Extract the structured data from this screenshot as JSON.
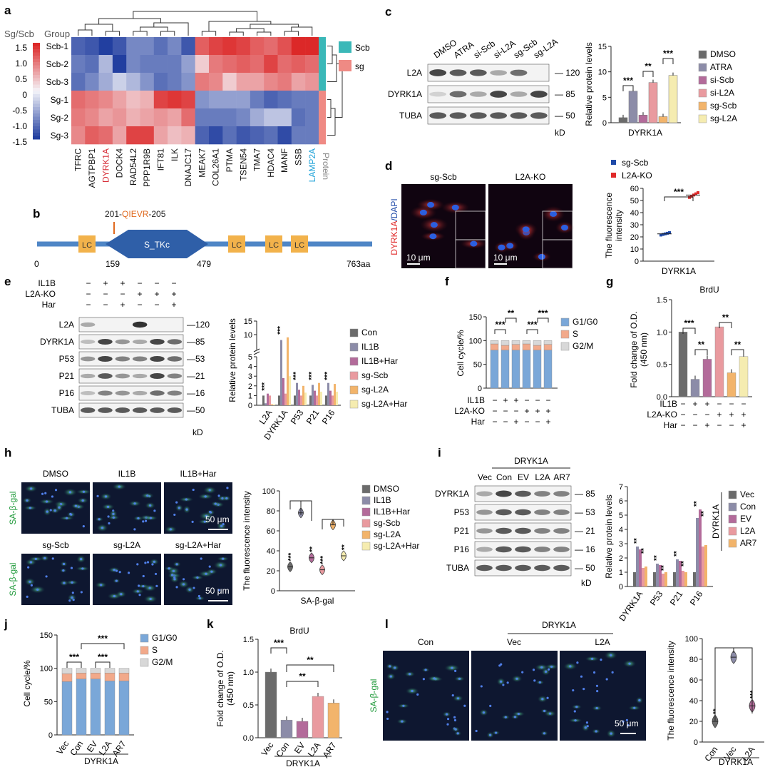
{
  "panel_letters": [
    "a",
    "b",
    "c",
    "d",
    "e",
    "f",
    "g",
    "h",
    "i",
    "j",
    "k",
    "l"
  ],
  "heatmap": {
    "scale_title": "Sg/Scb",
    "group_title": "Group",
    "scale_ticks": [
      "1.5",
      "1.0",
      "0.5",
      "0",
      "-0.5",
      "-1.0",
      "-1.5"
    ],
    "rows": [
      "Scb-1",
      "Scb-2",
      "Scb-3",
      "Sg-1",
      "Sg-2",
      "Sg-3"
    ],
    "row_groups": [
      "Scb",
      "Scb",
      "Scb",
      "sg",
      "sg",
      "sg"
    ],
    "cols": [
      "TFRC",
      "AGTPBP1",
      "DYRK1A",
      "DOCK4",
      "RAD54L2",
      "PPP1R9B",
      "IFT81",
      "ILK",
      "DNAJC17",
      "MEAK7",
      "COL26A1",
      "PTMA",
      "TSEN54",
      "TMA7",
      "HDAC4",
      "MANF",
      "SSB",
      "LAMP2A"
    ],
    "col_highlight": {
      "DYRK1A": "#d7303a",
      "LAMP2A": "#1ea2d8"
    },
    "protein_label": "Protein",
    "legend": [
      {
        "label": "Scb",
        "color": "#3bb8b8"
      },
      {
        "label": "sg",
        "color": "#ef8a84"
      }
    ],
    "values": [
      [
        -1.2,
        -1.3,
        -1.5,
        -1.3,
        -0.9,
        -0.9,
        -1.1,
        -0.9,
        -1.3,
        1.1,
        1.3,
        1.4,
        1.3,
        1.1,
        1.0,
        1.2,
        1.5,
        1.5
      ],
      [
        -1.0,
        -1.1,
        -0.5,
        -1.5,
        -0.9,
        -1.0,
        -1.0,
        -1.0,
        -0.7,
        0.3,
        0.9,
        1.0,
        1.1,
        1.0,
        1.3,
        1.0,
        1.1,
        1.0
      ],
      [
        -1.1,
        -0.9,
        -0.6,
        -0.3,
        -0.5,
        -0.8,
        -1.1,
        -1.0,
        -0.8,
        0.9,
        0.8,
        0.3,
        0.6,
        0.6,
        0.8,
        0.9,
        0.6,
        0.7
      ],
      [
        1.0,
        0.9,
        0.8,
        0.6,
        0.4,
        0.5,
        1.3,
        1.4,
        1.3,
        -0.8,
        -0.7,
        -0.7,
        -0.7,
        -1.0,
        -1.2,
        -1.1,
        -1.0,
        -1.0
      ],
      [
        0.9,
        0.8,
        0.6,
        0.7,
        0.5,
        0.6,
        0.7,
        0.6,
        1.0,
        -1.0,
        -1.0,
        -1.0,
        -0.9,
        -0.6,
        -0.4,
        -0.4,
        -1.1,
        -1.0
      ],
      [
        0.8,
        1.1,
        1.0,
        0.6,
        1.3,
        1.3,
        0.6,
        0.4,
        0.5,
        -1.2,
        -1.4,
        -1.1,
        -1.3,
        -1.2,
        -1.1,
        -1.4,
        -1.0,
        -1.0
      ]
    ]
  },
  "domain": {
    "site_label": "201-QIEVR-205",
    "site_prefix": "201-",
    "site_motif": "QIEVR",
    "site_suffix": "-205",
    "kinase": "S_TKc",
    "lc": "LC",
    "positions": [
      "0",
      "159",
      "479",
      "763aa"
    ]
  },
  "blot_c": {
    "lanes": [
      "DMSO",
      "ATRA",
      "si-Scb",
      "si-L2A",
      "sg-Scb",
      "sg-L2A"
    ],
    "bands": [
      "L2A",
      "DYRK1A",
      "TUBA"
    ],
    "sizes": [
      "120",
      "85",
      "50"
    ],
    "unit": "kD"
  },
  "chart_c": {
    "type": "bar",
    "ylabel": "Relative protein levels",
    "xlabel": "DYRK1A",
    "ylim": [
      0,
      15
    ],
    "yticks": [
      "0",
      "5",
      "10",
      "15"
    ],
    "series": [
      {
        "name": "DMSO",
        "value": 1.0,
        "color": "#6b6b6b"
      },
      {
        "name": "ATRA",
        "value": 6.2,
        "color": "#8c8ca8"
      },
      {
        "name": "si-Scb",
        "value": 1.5,
        "color": "#b36b9a"
      },
      {
        "name": "si-L2A",
        "value": 7.9,
        "color": "#e99a9f"
      },
      {
        "name": "sg-Scb",
        "value": 1.2,
        "color": "#f2b46b"
      },
      {
        "name": "sg-L2A",
        "value": 9.3,
        "color": "#f5ecb0"
      }
    ],
    "sig": [
      "***",
      "**",
      "***"
    ]
  },
  "image_d": {
    "left": "sg-Scb",
    "right": "L2A-KO",
    "stain": "DYRK1A",
    "stain2": "/DAPI",
    "scalebar": "10 μm"
  },
  "chart_d": {
    "type": "scatter",
    "ylabel": "The fluorescence\nintensity",
    "xlabel": "DYRK1A",
    "ylim": [
      0,
      60
    ],
    "yticks": [
      "0",
      "10",
      "20",
      "30",
      "40",
      "50",
      "60"
    ],
    "series": [
      {
        "name": "sg-Scb",
        "color": "#1f4aa8",
        "mean": 22.5,
        "points": [
          21.5,
          22,
          22.5,
          23,
          23.5
        ]
      },
      {
        "name": "L2A-KO",
        "color": "#e02a2a",
        "mean": 54.5,
        "points": [
          52.5,
          53.5,
          54.5,
          55.5,
          56.5
        ]
      }
    ],
    "sig": "***"
  },
  "blot_e": {
    "rows": [
      {
        "label": "IL1B",
        "signs": [
          "−",
          "+",
          "+",
          "−",
          "−",
          "−"
        ]
      },
      {
        "label": "L2A-KO",
        "signs": [
          "−",
          "−",
          "−",
          "+",
          "+",
          "+"
        ]
      },
      {
        "label": "Har",
        "signs": [
          "−",
          "−",
          "+",
          "−",
          "−",
          "+"
        ]
      }
    ],
    "bands": [
      "L2A",
      "DYRK1A",
      "P53",
      "P21",
      "P16",
      "TUBA"
    ],
    "sizes": [
      "120",
      "85",
      "53",
      "21",
      "16",
      "50"
    ],
    "unit": "kD"
  },
  "chart_e": {
    "type": "bar",
    "ylabel": "Relative protein levels",
    "categories": [
      "L2A",
      "DYRK1A",
      "P53",
      "P21",
      "P16"
    ],
    "yticks": [
      "0",
      "1",
      "2",
      "3",
      "4",
      "5",
      "10",
      "15"
    ],
    "series": [
      {
        "name": "Con",
        "color": "#6b6b6b",
        "values": [
          1.0,
          1.0,
          1.0,
          1.0,
          1.0
        ]
      },
      {
        "name": "IL1B",
        "color": "#8c8ca8",
        "values": [
          0.2,
          8.0,
          2.3,
          2.1,
          2.3
        ]
      },
      {
        "name": "IL1B+Har",
        "color": "#b36b9a",
        "values": [
          1.2,
          2.8,
          1.6,
          1.5,
          1.5
        ]
      },
      {
        "name": "sg-Scb",
        "color": "#e99a9f",
        "values": [
          1.0,
          1.2,
          1.0,
          1.0,
          1.0
        ]
      },
      {
        "name": "sg-L2A",
        "color": "#f2b46b",
        "values": [
          0.1,
          9.0,
          2.0,
          2.3,
          2.2
        ]
      },
      {
        "name": "sg-L2A+Har",
        "color": "#f5ecb0",
        "values": [
          0.1,
          3.0,
          1.3,
          1.4,
          1.4
        ]
      }
    ]
  },
  "chart_f": {
    "type": "bar",
    "ylabel": "Cell cycle/%",
    "ylim": [
      0,
      150
    ],
    "yticks": [
      "0",
      "50",
      "100",
      "150"
    ],
    "series": [
      {
        "name": "G1/G0",
        "color": "#7aa7d8",
        "values": [
          80,
          80,
          80,
          80,
          80,
          80
        ]
      },
      {
        "name": "S",
        "color": "#f2a98a",
        "values": [
          13,
          10,
          12,
          13,
          10,
          12
        ]
      },
      {
        "name": "G2/M",
        "color": "#d8d8d8",
        "values": [
          7,
          10,
          8,
          7,
          10,
          8
        ]
      }
    ],
    "rows": [
      {
        "label": "IL1B",
        "signs": [
          "−",
          "+",
          "+",
          "−",
          "−",
          "−"
        ]
      },
      {
        "label": "L2A-KO",
        "signs": [
          "−",
          "−",
          "−",
          "+",
          "+",
          "+"
        ]
      },
      {
        "label": "Har",
        "signs": [
          "−",
          "−",
          "+",
          "−",
          "−",
          "+"
        ]
      }
    ],
    "sig": [
      "***",
      "**",
      "***",
      "***"
    ]
  },
  "chart_g": {
    "type": "bar",
    "title": "BrdU",
    "ylabel": "Fold change of O.D.\n(450 nm)",
    "ylim": [
      0,
      1.5
    ],
    "yticks": [
      "0.0",
      "0.5",
      "1.0",
      "1.5"
    ],
    "values": [
      1.0,
      0.27,
      0.58,
      1.08,
      0.37,
      0.62
    ],
    "colors": [
      "#6b6b6b",
      "#8c8ca8",
      "#b36b9a",
      "#e99a9f",
      "#f2b46b",
      "#f5ecb0"
    ],
    "rows": [
      {
        "label": "IL1B",
        "signs": [
          "−",
          "+",
          "+",
          "−",
          "−",
          "−"
        ]
      },
      {
        "label": "L2A-KO",
        "signs": [
          "−",
          "−",
          "−",
          "+",
          "+",
          "+"
        ]
      },
      {
        "label": "Har",
        "signs": [
          "−",
          "−",
          "+",
          "−",
          "−",
          "+"
        ]
      }
    ],
    "sig": [
      "***",
      "**",
      "**",
      "**"
    ]
  },
  "image_h": {
    "stain": "SA-β-gal",
    "labels": [
      "DMSO",
      "IL1B",
      "IL1B+Har",
      "sg-Scb",
      "sg-L2A",
      "sg-L2A+Har"
    ],
    "scalebar": "50 μm"
  },
  "chart_h": {
    "type": "scatter",
    "ylabel": "The fluorescence intensity",
    "xlabel": "SA-β-gal",
    "ylim": [
      0,
      100
    ],
    "yticks": [
      "0",
      "20",
      "40",
      "60",
      "80",
      "100"
    ],
    "series": [
      {
        "name": "DMSO",
        "color": "#6b6b6b",
        "mean": 24,
        "stars": "***"
      },
      {
        "name": "IL1B",
        "color": "#8c8ca8",
        "mean": 78,
        "stars": ""
      },
      {
        "name": "IL1B+Har",
        "color": "#b36b9a",
        "mean": 33,
        "stars": "**"
      },
      {
        "name": "sg-Scb",
        "color": "#e99a9f",
        "mean": 21,
        "stars": "***"
      },
      {
        "name": "sg-L2A",
        "color": "#f2b46b",
        "mean": 66,
        "stars": ""
      },
      {
        "name": "sg-L2A+Har",
        "color": "#f5ecb0",
        "mean": 35,
        "stars": "**"
      }
    ]
  },
  "blot_i": {
    "group": "DRYK1A",
    "lanes": [
      "Vec",
      "Con",
      "EV",
      "L2A",
      "AR7"
    ],
    "bands": [
      "DYRK1A",
      "P53",
      "P21",
      "P16",
      "TUBA"
    ],
    "sizes": [
      "85",
      "53",
      "21",
      "16",
      "50"
    ],
    "unit": "kD"
  },
  "chart_i": {
    "type": "bar",
    "ylabel": "Relative protein levels",
    "ylim": [
      0,
      7
    ],
    "yticks": [
      "0",
      "1",
      "2",
      "3",
      "4",
      "5",
      "6",
      "7"
    ],
    "categories": [
      "DYRK1A",
      "P53",
      "P21",
      "P16"
    ],
    "group_label": "DYRK1A",
    "series": [
      {
        "name": "Vec",
        "color": "#6b6b6b",
        "values": [
          1.0,
          1.0,
          1.0,
          1.0
        ]
      },
      {
        "name": "Con",
        "color": "#8c8ca8",
        "values": [
          2.8,
          1.6,
          1.9,
          4.8
        ]
      },
      {
        "name": "EV",
        "color": "#b36b9a",
        "values": [
          2.6,
          1.5,
          1.8,
          5.4
        ]
      },
      {
        "name": "L2A",
        "color": "#e99a9f",
        "values": [
          1.3,
          0.9,
          1.1,
          2.8
        ]
      },
      {
        "name": "AR7",
        "color": "#f2b46b",
        "values": [
          1.4,
          1.0,
          1.0,
          2.9
        ]
      }
    ]
  },
  "chart_j": {
    "type": "bar",
    "ylabel": "Cell cycle/%",
    "ylim": [
      0,
      150
    ],
    "yticks": [
      "0",
      "50",
      "100",
      "150"
    ],
    "categories": [
      "Vec",
      "Con",
      "EV",
      "L2A",
      "AR7"
    ],
    "group": "DYRK1A",
    "series": [
      {
        "name": "G1/G0",
        "color": "#7aa7d8",
        "values": [
          80,
          84,
          84,
          81,
          81
        ]
      },
      {
        "name": "S",
        "color": "#f2a98a",
        "values": [
          12,
          9,
          9,
          12,
          12
        ]
      },
      {
        "name": "G2/M",
        "color": "#d8d8d8",
        "values": [
          8,
          7,
          7,
          7,
          7
        ]
      }
    ],
    "sig": [
      "***",
      "***",
      "***"
    ]
  },
  "chart_k": {
    "type": "bar",
    "title": "BrdU",
    "ylabel": "Fold change of O.D.\n(450 nm)",
    "ylim": [
      0,
      1.5
    ],
    "yticks": [
      "0.0",
      "0.5",
      "1.0",
      "1.5"
    ],
    "categories": [
      "Vec",
      "Con",
      "EV",
      "L2A",
      "AR7"
    ],
    "group": "DRYK1A",
    "values": [
      1.0,
      0.27,
      0.25,
      0.63,
      0.53
    ],
    "colors": [
      "#6b6b6b",
      "#8c8ca8",
      "#b36b9a",
      "#e99a9f",
      "#f2b46b"
    ],
    "sig": [
      "***",
      "**",
      "**"
    ]
  },
  "image_l": {
    "stain": "SA-β-gal",
    "group": "DRYK1A",
    "labels": [
      "Con",
      "Vec",
      "L2A"
    ],
    "scalebar": "50 μm"
  },
  "chart_l": {
    "type": "scatter",
    "ylabel": "The fluorescence intensity",
    "ylim": [
      0,
      100
    ],
    "yticks": [
      "0",
      "20",
      "40",
      "60",
      "80",
      "100"
    ],
    "categories": [
      "Con",
      "Vec",
      "L2A"
    ],
    "group": "DYRK1A",
    "series": [
      {
        "name": "Con",
        "color": "#6b6b6b",
        "mean": 20,
        "stars": "**"
      },
      {
        "name": "Vec",
        "color": "#8c8ca8",
        "mean": 82,
        "stars": ""
      },
      {
        "name": "L2A",
        "color": "#b36b9a",
        "mean": 35,
        "stars": "***"
      }
    ]
  }
}
